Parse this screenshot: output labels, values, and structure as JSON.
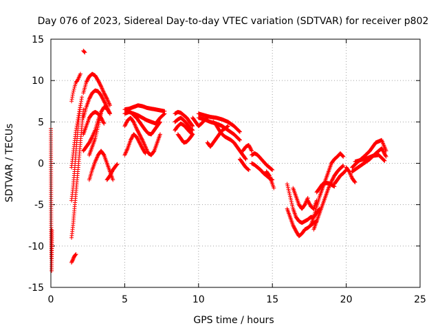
{
  "chart_data": {
    "type": "scatter",
    "title": "Day 076 of 2023, Sidereal Day-to-day VTEC variation (SDTVAR) for receiver p802",
    "xlabel": "GPS time / hours",
    "ylabel": "SDTVAR / TECUs",
    "xlim": [
      0,
      25
    ],
    "ylim": [
      -15,
      15
    ],
    "xticks": [
      0,
      5,
      10,
      15,
      20,
      25
    ],
    "yticks": [
      -15,
      -10,
      -5,
      0,
      5,
      10,
      15
    ],
    "grid": true,
    "marker": "+",
    "series": [
      {
        "name": "SDTVAR",
        "color": "#ff0000",
        "segments": [
          {
            "x": [
              0.0,
              0.02,
              0.04
            ],
            "y": [
              4.2,
              -8.0,
              -11.5
            ]
          },
          {
            "x": [
              0.05,
              0.07
            ],
            "y": [
              -13.0,
              -8.1
            ]
          },
          {
            "x": [
              1.4,
              1.5,
              1.6,
              1.7,
              1.8,
              1.9,
              2.0
            ],
            "y": [
              7.5,
              8.5,
              9.2,
              9.8,
              10.0,
              10.4,
              10.8
            ]
          },
          {
            "x": [
              1.4,
              1.45,
              1.5,
              1.55,
              1.6,
              1.7
            ],
            "y": [
              -12.0,
              -11.8,
              -11.6,
              -11.4,
              -11.2,
              -11.0
            ]
          },
          {
            "x": [
              1.4,
              1.5,
              1.6,
              1.7,
              1.8,
              1.9,
              2.0,
              2.1,
              2.2
            ],
            "y": [
              -9.0,
              -7.5,
              -5.5,
              -3.5,
              -1.5,
              0.5,
              2.5,
              4.5,
              6.5
            ]
          },
          {
            "x": [
              1.4,
              1.5,
              1.6,
              1.7,
              1.8,
              1.9,
              2.0
            ],
            "y": [
              -4.5,
              -3.0,
              -1.0,
              1.5,
              3.5,
              5.5,
              7.0
            ]
          },
          {
            "x": [
              1.4,
              1.5,
              1.6,
              1.7,
              1.8,
              1.9,
              2.0,
              2.1
            ],
            "y": [
              -0.5,
              1.0,
              2.5,
              4.0,
              5.0,
              6.0,
              7.0,
              8.0
            ]
          },
          {
            "x": [
              2.2,
              2.3
            ],
            "y": [
              13.6,
              13.4
            ]
          },
          {
            "x": [
              2.2,
              2.4,
              2.6,
              2.8,
              3.0,
              3.2,
              3.4,
              3.6,
              3.8,
              4.0
            ],
            "y": [
              8.5,
              9.8,
              10.5,
              10.8,
              10.6,
              10.0,
              9.3,
              8.5,
              7.8,
              7.0
            ]
          },
          {
            "x": [
              2.2,
              2.4,
              2.6,
              2.8,
              3.0,
              3.2,
              3.4,
              3.6,
              3.8,
              4.0
            ],
            "y": [
              5.5,
              6.8,
              7.8,
              8.5,
              8.8,
              8.7,
              8.2,
              7.5,
              6.8,
              6.0
            ]
          },
          {
            "x": [
              2.2,
              2.4,
              2.6,
              2.8,
              3.0,
              3.2,
              3.4,
              3.6,
              3.8,
              4.0
            ],
            "y": [
              1.5,
              2.0,
              2.5,
              3.2,
              4.0,
              5.2,
              6.2,
              6.8,
              6.6,
              6.0
            ]
          },
          {
            "x": [
              2.2,
              2.4,
              2.6,
              2.8,
              3.0,
              3.2,
              3.4,
              3.6
            ],
            "y": [
              3.5,
              4.5,
              5.5,
              6.0,
              6.2,
              6.0,
              5.5,
              4.8
            ]
          },
          {
            "x": [
              2.6,
              2.8,
              3.0,
              3.2,
              3.4,
              3.6,
              3.8,
              4.0,
              4.2
            ],
            "y": [
              -2.0,
              -0.8,
              0.2,
              1.0,
              1.5,
              1.0,
              0.0,
              -1.0,
              -2.0
            ]
          },
          {
            "x": [
              2.6,
              2.8,
              3.0,
              3.2,
              3.4
            ],
            "y": [
              1.0,
              2.0,
              3.0,
              4.5,
              6.0
            ]
          },
          {
            "x": [
              3.8,
              4.0,
              4.2,
              4.4,
              4.5
            ],
            "y": [
              -2.0,
              -1.5,
              -0.8,
              -0.3,
              -0.1
            ]
          },
          {
            "x": [
              5.0,
              5.3,
              5.6,
              5.9,
              6.2,
              6.5,
              6.8,
              7.1,
              7.4,
              7.7
            ],
            "y": [
              6.5,
              6.6,
              6.8,
              7.0,
              6.9,
              6.7,
              6.6,
              6.5,
              6.4,
              6.3
            ]
          },
          {
            "x": [
              5.0,
              5.3,
              5.6,
              5.9,
              6.2,
              6.5,
              6.8,
              7.1,
              7.4,
              7.7
            ],
            "y": [
              6.0,
              6.2,
              6.0,
              5.8,
              5.5,
              5.2,
              5.0,
              4.8,
              5.5,
              6.0
            ]
          },
          {
            "x": [
              5.0,
              5.2,
              5.4,
              5.6,
              5.8,
              6.0,
              6.2,
              6.4,
              6.6,
              6.8,
              7.0,
              7.2,
              7.4
            ],
            "y": [
              4.5,
              5.2,
              5.5,
              5.0,
              4.2,
              3.5,
              2.8,
              2.0,
              1.2,
              1.0,
              1.5,
              2.5,
              3.5
            ]
          },
          {
            "x": [
              5.0,
              5.2,
              5.4,
              5.6,
              5.8,
              6.0,
              6.2,
              6.4
            ],
            "y": [
              1.0,
              1.8,
              2.8,
              3.5,
              3.2,
              2.5,
              1.8,
              1.2
            ]
          },
          {
            "x": [
              5.6,
              5.8,
              6.0,
              6.2,
              6.4,
              6.6,
              6.8,
              7.0,
              7.2,
              7.4
            ],
            "y": [
              5.8,
              5.5,
              5.0,
              4.5,
              4.0,
              3.6,
              3.5,
              4.0,
              4.5,
              5.0
            ]
          },
          {
            "x": [
              8.4,
              8.6,
              8.8,
              9.0,
              9.2,
              9.4,
              9.6
            ],
            "y": [
              6.0,
              6.2,
              6.1,
              5.8,
              5.5,
              5.0,
              4.5
            ]
          },
          {
            "x": [
              8.4,
              8.6,
              8.8,
              9.0,
              9.2,
              9.4,
              9.6
            ],
            "y": [
              5.0,
              5.3,
              5.5,
              5.2,
              4.8,
              4.3,
              4.0
            ]
          },
          {
            "x": [
              8.4,
              8.6,
              8.8,
              9.0,
              9.2,
              9.4,
              9.6
            ],
            "y": [
              4.0,
              4.5,
              4.8,
              4.6,
              4.2,
              3.8,
              3.5
            ]
          },
          {
            "x": [
              8.6,
              8.8,
              9.0,
              9.2,
              9.4,
              9.6
            ],
            "y": [
              3.5,
              3.0,
              2.5,
              2.6,
              3.0,
              3.5
            ]
          },
          {
            "x": [
              10.0,
              10.4,
              10.8,
              11.2,
              11.6,
              12.0,
              12.4,
              12.8
            ],
            "y": [
              6.0,
              5.8,
              5.6,
              5.5,
              5.3,
              5.0,
              4.5,
              3.8
            ]
          },
          {
            "x": [
              10.0,
              10.4,
              10.8,
              11.2,
              11.6,
              12.0,
              12.4,
              12.8
            ],
            "y": [
              5.5,
              5.3,
              5.0,
              4.8,
              4.5,
              4.0,
              3.5,
              2.8
            ]
          },
          {
            "x": [
              9.6,
              9.8,
              10.0,
              10.2,
              10.4,
              10.6
            ],
            "y": [
              5.5,
              5.0,
              4.5,
              4.8,
              5.2,
              5.5
            ]
          },
          {
            "x": [
              10.6,
              10.8,
              11.0,
              11.2,
              11.4,
              11.6,
              11.8,
              12.0
            ],
            "y": [
              2.5,
              2.0,
              2.5,
              3.0,
              3.5,
              4.0,
              4.2,
              4.5
            ]
          },
          {
            "x": [
              11.0,
              11.2,
              11.4,
              11.6,
              11.8,
              12.0,
              12.2,
              12.4,
              12.6,
              12.8,
              13.0,
              13.2
            ],
            "y": [
              5.0,
              4.6,
              4.0,
              3.5,
              3.2,
              3.0,
              2.8,
              2.5,
              2.0,
              1.5,
              1.0,
              0.5
            ]
          },
          {
            "x": [
              12.8,
              13.0,
              13.2,
              13.4
            ],
            "y": [
              0.5,
              0.0,
              -0.5,
              -0.8
            ]
          },
          {
            "x": [
              13.0,
              13.2,
              13.4,
              13.6
            ],
            "y": [
              1.5,
              2.0,
              2.2,
              1.5
            ]
          },
          {
            "x": [
              13.6,
              13.8,
              14.0,
              14.2,
              14.4,
              14.6,
              14.8,
              15.0
            ],
            "y": [
              1.0,
              1.2,
              1.0,
              0.6,
              0.2,
              -0.2,
              -0.5,
              -0.8
            ]
          },
          {
            "x": [
              13.6,
              13.8,
              14.0,
              14.2,
              14.4,
              14.6,
              14.8,
              15.0
            ],
            "y": [
              0.0,
              -0.2,
              -0.5,
              -0.8,
              -1.2,
              -1.5,
              -1.8,
              -2.0
            ]
          },
          {
            "x": [
              14.6,
              14.8,
              15.0,
              15.1
            ],
            "y": [
              -1.0,
              -1.5,
              -2.5,
              -3.0
            ]
          },
          {
            "x": [
              16.0,
              16.2,
              16.4,
              16.6,
              16.8,
              17.0,
              17.2,
              17.4,
              17.6,
              17.8,
              18.0,
              18.2
            ],
            "y": [
              -2.5,
              -4.0,
              -5.5,
              -6.5,
              -7.0,
              -7.2,
              -7.0,
              -6.8,
              -6.5,
              -6.5,
              -6.0,
              -5.5
            ]
          },
          {
            "x": [
              16.0,
              16.2,
              16.4,
              16.6,
              16.8,
              17.0,
              17.2,
              17.4,
              17.6,
              17.8,
              18.0
            ],
            "y": [
              -5.5,
              -6.5,
              -7.5,
              -8.2,
              -8.8,
              -8.5,
              -8.0,
              -7.8,
              -7.5,
              -7.2,
              -7.0
            ]
          },
          {
            "x": [
              16.4,
              16.6,
              16.8,
              17.0,
              17.2,
              17.4
            ],
            "y": [
              -3.0,
              -4.0,
              -5.0,
              -5.5,
              -5.0,
              -4.2
            ]
          },
          {
            "x": [
              17.4,
              17.6,
              17.8,
              18.0
            ],
            "y": [
              -4.5,
              -5.2,
              -5.5,
              -4.5
            ]
          },
          {
            "x": [
              17.6,
              17.8,
              18.0,
              18.2,
              18.4,
              18.6,
              18.8,
              19.0,
              19.2,
              19.4,
              19.6,
              19.8
            ],
            "y": [
              -7.5,
              -6.5,
              -5.2,
              -4.0,
              -3.0,
              -2.0,
              -1.0,
              0.0,
              0.5,
              0.8,
              1.2,
              0.8
            ]
          },
          {
            "x": [
              17.8,
              18.0,
              18.2,
              18.4,
              18.6,
              18.8,
              19.0,
              19.2,
              19.4,
              19.6,
              19.8
            ],
            "y": [
              -8.0,
              -7.0,
              -6.0,
              -5.0,
              -4.0,
              -3.0,
              -2.2,
              -1.5,
              -1.0,
              -0.6,
              -0.3
            ]
          },
          {
            "x": [
              18.0,
              18.2,
              18.4,
              18.6,
              18.8,
              19.0,
              19.2
            ],
            "y": [
              -3.5,
              -3.0,
              -2.5,
              -2.4,
              -2.4,
              -2.6,
              -2.8
            ]
          },
          {
            "x": [
              19.2,
              19.4,
              19.6,
              19.8,
              20.0
            ],
            "y": [
              -2.5,
              -2.0,
              -1.5,
              -1.2,
              -0.8
            ]
          },
          {
            "x": [
              20.0,
              20.2,
              20.4,
              20.6
            ],
            "y": [
              -0.5,
              -1.0,
              -1.8,
              -2.3
            ]
          },
          {
            "x": [
              20.4,
              20.8,
              21.2,
              21.6,
              22.0,
              22.4,
              22.7
            ],
            "y": [
              -0.5,
              0.2,
              0.8,
              1.5,
              2.5,
              2.8,
              1.5
            ]
          },
          {
            "x": [
              20.4,
              20.8,
              21.2,
              21.6,
              22.0,
              22.4,
              22.7
            ],
            "y": [
              -1.0,
              -0.5,
              0.0,
              0.5,
              1.2,
              1.8,
              0.8
            ]
          },
          {
            "x": [
              20.6,
              21.0,
              21.4,
              21.8,
              22.2,
              22.6
            ],
            "y": [
              0.2,
              0.4,
              0.6,
              0.9,
              1.0,
              0.3
            ]
          }
        ]
      }
    ]
  }
}
